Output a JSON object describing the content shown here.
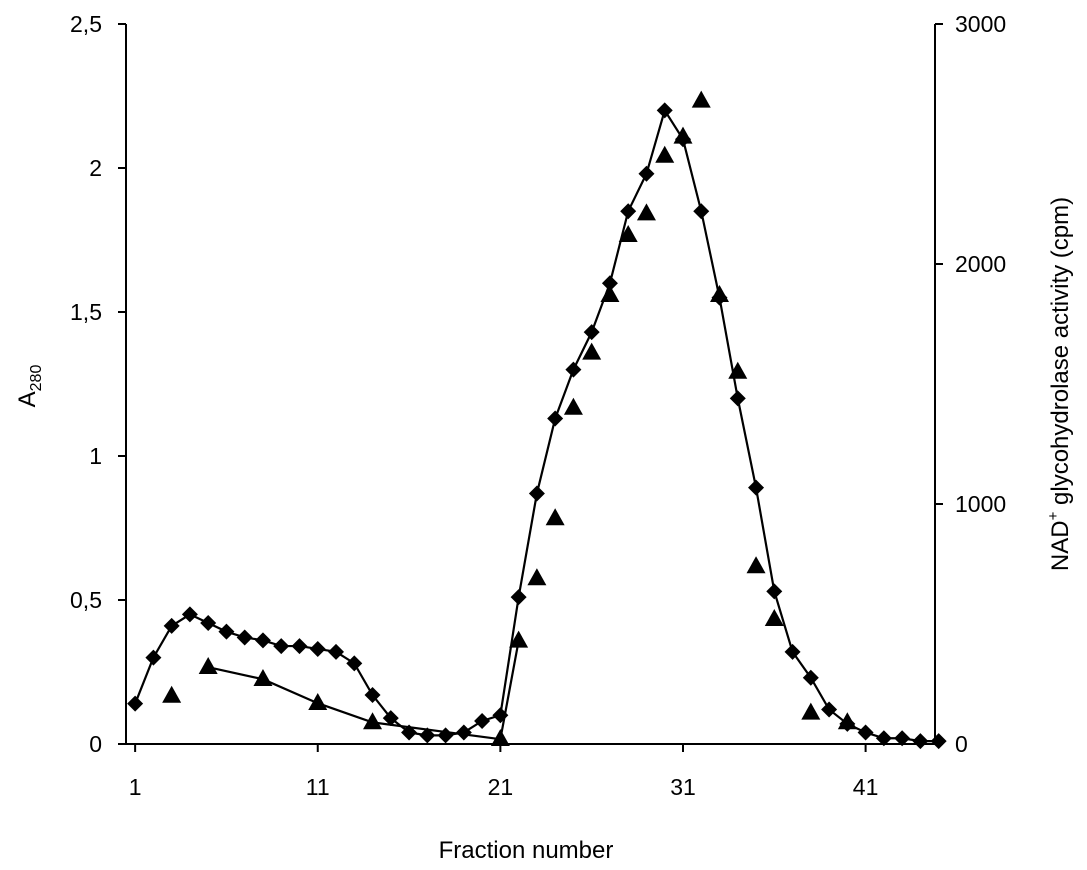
{
  "chart_data": {
    "type": "line",
    "title": "",
    "xlabel": "Fraction number",
    "ylabel_left": {
      "main": "A",
      "sub": "280"
    },
    "ylabel_right": {
      "prefix": "NAD",
      "sup": "+",
      "suffix": " glycohydrolase activity (cpm)"
    },
    "xlim": [
      0.5,
      44.8
    ],
    "ylim_left": [
      0,
      2.5
    ],
    "ylim_right": [
      0,
      3000
    ],
    "x_ticks": [
      1,
      11,
      21,
      31,
      41
    ],
    "x_tick_labels": [
      "1",
      "11",
      "21",
      "31",
      "41"
    ],
    "y_left_ticks": [
      0,
      0.5,
      1,
      1.5,
      2,
      2.5
    ],
    "y_left_tick_labels": [
      "0",
      "0,5",
      "1",
      "1,5",
      "2",
      "2,5"
    ],
    "y_right_ticks": [
      0,
      1000,
      2000,
      3000
    ],
    "y_right_tick_labels": [
      "0",
      "1000",
      "2000",
      "3000"
    ],
    "grid": false,
    "legend": "none",
    "series": [
      {
        "axis": "left",
        "marker": "diamond",
        "connected": true,
        "x": [
          1,
          2,
          3,
          4,
          5,
          6,
          7,
          8,
          9,
          10,
          11,
          12,
          13,
          14,
          15,
          16,
          17,
          18,
          19,
          20,
          21,
          22,
          23,
          24,
          25,
          26,
          27,
          28,
          29,
          30,
          31,
          32,
          33,
          34,
          35,
          36,
          37,
          38,
          39,
          40,
          41,
          42,
          43,
          44,
          45
        ],
        "y": [
          0.14,
          0.3,
          0.41,
          0.45,
          0.42,
          0.39,
          0.37,
          0.36,
          0.34,
          0.34,
          0.33,
          0.32,
          0.28,
          0.17,
          0.09,
          0.04,
          0.03,
          0.03,
          0.04,
          0.08,
          0.1,
          0.51,
          0.87,
          1.13,
          1.3,
          1.43,
          1.6,
          1.85,
          1.98,
          2.2,
          2.1,
          1.85,
          1.55,
          1.2,
          0.89,
          0.53,
          0.32,
          0.23,
          0.12,
          0.07,
          0.04,
          0.02,
          0.02,
          0.01,
          0.01
        ]
      },
      {
        "axis": "right",
        "marker": "triangle",
        "connected": true,
        "x": [
          3,
          5,
          8,
          11,
          14,
          21,
          22,
          23,
          24,
          25,
          26,
          27,
          28,
          29,
          30,
          31,
          32,
          33,
          34,
          35,
          36,
          38,
          40
        ],
        "y": [
          200,
          320,
          270,
          170,
          90,
          20,
          430,
          690,
          940,
          1400,
          1630,
          1870,
          2120,
          2210,
          2450,
          2530,
          2680,
          1870,
          1550,
          740,
          520,
          130,
          90
        ],
        "line_segments": [
          [
            5,
            22
          ]
        ]
      }
    ]
  }
}
